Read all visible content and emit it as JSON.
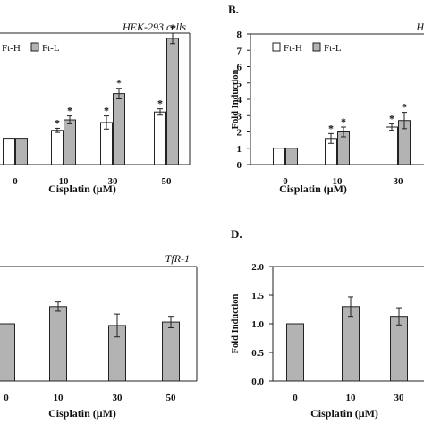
{
  "colors": {
    "white_bar": "#ffffff",
    "gray_bar": "#b3b3b3",
    "stroke": "#222222"
  },
  "panels": [
    {
      "letter": "",
      "title": "HEK-293 cells",
      "chart_data": {
        "type": "bar",
        "title": "HEK-293 cells",
        "xlabel": "Cisplatin (μM)",
        "ylabel": "",
        "categories": [
          "0",
          "10",
          "30",
          "50"
        ],
        "ylim": [
          0,
          5
        ],
        "yticks": [],
        "grid": false,
        "legend": "top-left",
        "series": [
          {
            "name": "Ft-H",
            "values": [
              1.0,
              1.3,
              1.6,
              2.0
            ],
            "errors": [
              0.0,
              0.08,
              0.25,
              0.12
            ],
            "significant": [
              false,
              true,
              true,
              true
            ]
          },
          {
            "name": "Ft-L",
            "values": [
              1.0,
              1.7,
              2.7,
              4.8
            ],
            "errors": [
              0.0,
              0.15,
              0.2,
              0.2
            ],
            "significant": [
              false,
              true,
              true,
              true
            ]
          }
        ]
      }
    },
    {
      "letter": "B.",
      "title": "H",
      "chart_data": {
        "type": "bar",
        "title": "H",
        "xlabel": "Cisplatin (μM)",
        "ylabel": "Fold Induction",
        "categories": [
          "0",
          "10",
          "30"
        ],
        "ylim": [
          0,
          8
        ],
        "yticks": [
          0,
          1,
          2,
          3,
          4,
          5,
          6,
          7,
          8
        ],
        "grid": false,
        "legend": "top-left",
        "series": [
          {
            "name": "Ft-H",
            "values": [
              1.0,
              1.6,
              2.3
            ],
            "errors": [
              0.0,
              0.3,
              0.2
            ],
            "significant": [
              false,
              true,
              true
            ]
          },
          {
            "name": "Ft-L",
            "values": [
              1.0,
              2.0,
              2.7
            ],
            "errors": [
              0.0,
              0.3,
              0.5
            ],
            "significant": [
              false,
              true,
              true
            ]
          }
        ]
      }
    },
    {
      "letter": "",
      "title": "TfR-1",
      "chart_data": {
        "type": "bar",
        "title": "TfR-1",
        "xlabel": "Cisplatin (μM)",
        "ylabel": "",
        "categories": [
          "0",
          "10",
          "30",
          "50"
        ],
        "ylim": [
          0,
          2.0
        ],
        "yticks": [],
        "grid": false,
        "series": [
          {
            "values": [
              1.0,
              1.3,
              0.97,
              1.03
            ],
            "errors": [
              0.0,
              0.08,
              0.2,
              0.1
            ]
          }
        ]
      }
    },
    {
      "letter": "D.",
      "title": "",
      "chart_data": {
        "type": "bar",
        "title": "",
        "xlabel": "Cisplatin (μM)",
        "ylabel": "Fold Induction",
        "categories": [
          "0",
          "10",
          "30"
        ],
        "ylim": [
          0,
          2.0
        ],
        "yticks": [
          "0.0",
          "0.5",
          "1.0",
          "1.5",
          "2.0"
        ],
        "grid": false,
        "series": [
          {
            "values": [
              1.0,
              1.3,
              1.13
            ],
            "errors": [
              0.0,
              0.17,
              0.15
            ]
          }
        ]
      }
    }
  ]
}
